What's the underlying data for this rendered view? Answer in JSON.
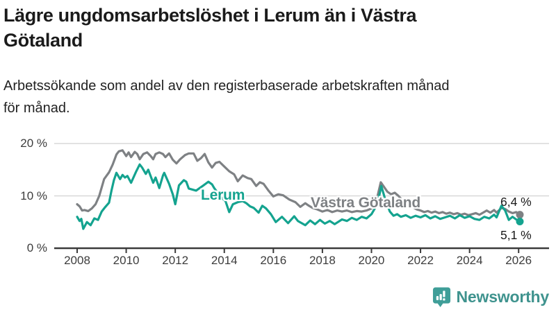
{
  "header": {
    "title": "Lägre ungdomsarbetslöshet i Lerum än i Västra\nGötaland",
    "subtitle": "Arbetssökande som andel av den registerbaserade arbetskraften månad\nför månad."
  },
  "chart_data": {
    "type": "line",
    "title": "Lägre ungdomsarbetslöshet i Lerum än i Västra Götaland",
    "unit": "%",
    "x_axis": {
      "tick_years": [
        2008,
        2010,
        2012,
        2014,
        2016,
        2018,
        2020,
        2022,
        2024,
        2026
      ],
      "tick_labels": [
        "2008",
        "2010",
        "2012",
        "2014",
        "2016",
        "2018",
        "2020",
        "2022",
        "2024",
        "2026"
      ],
      "range_years": [
        2007.1,
        2027.2
      ]
    },
    "y_axis": {
      "tick_values": [
        0,
        10,
        20
      ],
      "tick_labels": [
        "0 %",
        "10 %",
        "20 %"
      ],
      "range": [
        0,
        21
      ],
      "gridlines": [
        10,
        20
      ],
      "grid_color": "#d8d8d8",
      "axis_color": "#3a3a3a"
    },
    "legend_position": "inline-labels",
    "series": [
      {
        "name": "Västra Götaland",
        "color": "#7e8184",
        "end_label": "6,4 %",
        "end_value": 6.4,
        "label": {
          "text": "Västra Götaland",
          "x": 447,
          "y": 281
        },
        "points": [
          [
            2008.0,
            8.4
          ],
          [
            2008.1,
            8.0
          ],
          [
            2008.2,
            7.2
          ],
          [
            2008.3,
            7.3
          ],
          [
            2008.45,
            7.1
          ],
          [
            2008.6,
            7.6
          ],
          [
            2008.75,
            8.4
          ],
          [
            2008.9,
            10.0
          ],
          [
            2009.1,
            13.2
          ],
          [
            2009.3,
            14.5
          ],
          [
            2009.45,
            16.0
          ],
          [
            2009.6,
            17.9
          ],
          [
            2009.7,
            18.5
          ],
          [
            2009.85,
            18.7
          ],
          [
            2010.0,
            17.6
          ],
          [
            2010.1,
            18.3
          ],
          [
            2010.2,
            17.4
          ],
          [
            2010.35,
            18.4
          ],
          [
            2010.45,
            18.0
          ],
          [
            2010.55,
            17.0
          ],
          [
            2010.7,
            18.0
          ],
          [
            2010.85,
            18.3
          ],
          [
            2011.0,
            17.6
          ],
          [
            2011.1,
            17.0
          ],
          [
            2011.2,
            18.0
          ],
          [
            2011.35,
            18.3
          ],
          [
            2011.5,
            18.0
          ],
          [
            2011.6,
            17.4
          ],
          [
            2011.75,
            18.1
          ],
          [
            2011.9,
            16.9
          ],
          [
            2012.05,
            16.2
          ],
          [
            2012.2,
            17.0
          ],
          [
            2012.4,
            17.8
          ],
          [
            2012.55,
            18.1
          ],
          [
            2012.75,
            18.1
          ],
          [
            2012.9,
            16.7
          ],
          [
            2013.05,
            17.2
          ],
          [
            2013.2,
            18.0
          ],
          [
            2013.35,
            16.4
          ],
          [
            2013.5,
            15.4
          ],
          [
            2013.65,
            16.3
          ],
          [
            2013.8,
            16.5
          ],
          [
            2014.0,
            15.6
          ],
          [
            2014.2,
            14.7
          ],
          [
            2014.4,
            14.1
          ],
          [
            2014.55,
            12.8
          ],
          [
            2014.75,
            13.9
          ],
          [
            2014.95,
            13.4
          ],
          [
            2015.1,
            13.2
          ],
          [
            2015.3,
            11.9
          ],
          [
            2015.45,
            12.6
          ],
          [
            2015.6,
            12.3
          ],
          [
            2015.8,
            11.0
          ],
          [
            2016.0,
            9.9
          ],
          [
            2016.2,
            10.3
          ],
          [
            2016.4,
            10.1
          ],
          [
            2016.65,
            9.3
          ],
          [
            2016.9,
            8.8
          ],
          [
            2017.1,
            7.9
          ],
          [
            2017.3,
            8.6
          ],
          [
            2017.45,
            8.1
          ],
          [
            2017.6,
            7.7
          ],
          [
            2017.8,
            7.4
          ],
          [
            2018.0,
            7.0
          ],
          [
            2018.2,
            7.3
          ],
          [
            2018.4,
            6.9
          ],
          [
            2018.6,
            7.2
          ],
          [
            2018.8,
            7.0
          ],
          [
            2019.0,
            7.2
          ],
          [
            2019.2,
            6.9
          ],
          [
            2019.4,
            7.1
          ],
          [
            2019.6,
            7.0
          ],
          [
            2019.8,
            7.2
          ],
          [
            2020.0,
            7.6
          ],
          [
            2020.2,
            9.0
          ],
          [
            2020.38,
            12.6
          ],
          [
            2020.5,
            11.8
          ],
          [
            2020.65,
            10.8
          ],
          [
            2020.8,
            10.3
          ],
          [
            2020.95,
            10.6
          ],
          [
            2021.1,
            10.0
          ],
          [
            2021.25,
            9.2
          ],
          [
            2021.4,
            8.5
          ],
          [
            2021.55,
            8.2
          ],
          [
            2021.7,
            7.8
          ],
          [
            2021.85,
            7.4
          ],
          [
            2022.0,
            7.2
          ],
          [
            2022.15,
            6.9
          ],
          [
            2022.3,
            7.1
          ],
          [
            2022.45,
            6.8
          ],
          [
            2022.6,
            7.0
          ],
          [
            2022.75,
            6.7
          ],
          [
            2022.9,
            6.9
          ],
          [
            2023.05,
            6.6
          ],
          [
            2023.2,
            6.8
          ],
          [
            2023.35,
            6.5
          ],
          [
            2023.5,
            6.7
          ],
          [
            2023.65,
            6.4
          ],
          [
            2023.8,
            6.6
          ],
          [
            2023.95,
            6.3
          ],
          [
            2024.1,
            6.5
          ],
          [
            2024.25,
            6.7
          ],
          [
            2024.4,
            6.4
          ],
          [
            2024.55,
            6.8
          ],
          [
            2024.7,
            7.2
          ],
          [
            2024.85,
            6.8
          ],
          [
            2025.0,
            7.3
          ],
          [
            2025.1,
            6.8
          ],
          [
            2025.3,
            7.7
          ],
          [
            2025.45,
            7.5
          ],
          [
            2025.6,
            7.0
          ],
          [
            2025.75,
            6.7
          ],
          [
            2025.9,
            6.9
          ],
          [
            2026.05,
            6.4
          ]
        ]
      },
      {
        "name": "Lerum",
        "color": "#14a38f",
        "end_label": "5,1 %",
        "end_value": 5.1,
        "label": {
          "text": "Lerum",
          "x": 289,
          "y": 270
        },
        "points": [
          [
            2008.0,
            6.0
          ],
          [
            2008.1,
            5.2
          ],
          [
            2008.17,
            5.6
          ],
          [
            2008.25,
            3.7
          ],
          [
            2008.4,
            5.0
          ],
          [
            2008.55,
            4.4
          ],
          [
            2008.7,
            5.7
          ],
          [
            2008.85,
            5.4
          ],
          [
            2009.0,
            7.0
          ],
          [
            2009.15,
            7.9
          ],
          [
            2009.3,
            8.7
          ],
          [
            2009.4,
            11.0
          ],
          [
            2009.5,
            13.0
          ],
          [
            2009.6,
            14.4
          ],
          [
            2009.75,
            13.2
          ],
          [
            2009.85,
            14.0
          ],
          [
            2009.95,
            13.5
          ],
          [
            2010.05,
            13.8
          ],
          [
            2010.2,
            12.5
          ],
          [
            2010.4,
            14.6
          ],
          [
            2010.55,
            16.0
          ],
          [
            2010.65,
            15.4
          ],
          [
            2010.8,
            14.2
          ],
          [
            2010.9,
            15.0
          ],
          [
            2011.1,
            12.5
          ],
          [
            2011.2,
            13.5
          ],
          [
            2011.35,
            11.5
          ],
          [
            2011.5,
            13.9
          ],
          [
            2011.55,
            14.4
          ],
          [
            2011.75,
            12.3
          ],
          [
            2011.9,
            10.3
          ],
          [
            2012.0,
            8.4
          ],
          [
            2012.15,
            12.0
          ],
          [
            2012.35,
            13.0
          ],
          [
            2012.45,
            12.7
          ],
          [
            2012.55,
            11.4
          ],
          [
            2012.7,
            11.2
          ],
          [
            2012.85,
            11.0
          ],
          [
            2013.0,
            11.5
          ],
          [
            2013.15,
            12.0
          ],
          [
            2013.35,
            12.7
          ],
          [
            2013.5,
            12.2
          ],
          [
            2013.6,
            11.4
          ],
          [
            2013.75,
            10.5
          ],
          [
            2013.9,
            9.6
          ],
          [
            2014.05,
            9.0
          ],
          [
            2014.2,
            6.9
          ],
          [
            2014.35,
            8.4
          ],
          [
            2014.55,
            8.8
          ],
          [
            2014.75,
            9.0
          ],
          [
            2014.9,
            8.6
          ],
          [
            2015.05,
            8.0
          ],
          [
            2015.2,
            7.7
          ],
          [
            2015.4,
            6.8
          ],
          [
            2015.55,
            8.1
          ],
          [
            2015.7,
            7.6
          ],
          [
            2015.9,
            6.5
          ],
          [
            2016.1,
            5.0
          ],
          [
            2016.35,
            6.0
          ],
          [
            2016.6,
            4.8
          ],
          [
            2016.85,
            6.1
          ],
          [
            2017.0,
            5.2
          ],
          [
            2017.3,
            4.4
          ],
          [
            2017.5,
            5.3
          ],
          [
            2017.7,
            4.6
          ],
          [
            2017.9,
            5.4
          ],
          [
            2018.1,
            4.7
          ],
          [
            2018.3,
            5.2
          ],
          [
            2018.5,
            4.6
          ],
          [
            2018.8,
            5.5
          ],
          [
            2019.0,
            5.2
          ],
          [
            2019.2,
            5.8
          ],
          [
            2019.4,
            5.4
          ],
          [
            2019.6,
            6.0
          ],
          [
            2019.8,
            5.7
          ],
          [
            2020.0,
            6.5
          ],
          [
            2020.25,
            8.5
          ],
          [
            2020.4,
            11.9
          ],
          [
            2020.55,
            9.5
          ],
          [
            2020.75,
            7.0
          ],
          [
            2020.9,
            6.2
          ],
          [
            2021.05,
            6.5
          ],
          [
            2021.2,
            6.0
          ],
          [
            2021.4,
            6.3
          ],
          [
            2021.6,
            5.8
          ],
          [
            2021.8,
            6.2
          ],
          [
            2022.0,
            5.9
          ],
          [
            2022.2,
            6.3
          ],
          [
            2022.4,
            5.7
          ],
          [
            2022.6,
            6.1
          ],
          [
            2022.8,
            5.6
          ],
          [
            2023.0,
            5.9
          ],
          [
            2023.2,
            6.2
          ],
          [
            2023.4,
            5.7
          ],
          [
            2023.6,
            6.3
          ],
          [
            2023.8,
            5.8
          ],
          [
            2024.0,
            6.1
          ],
          [
            2024.2,
            5.6
          ],
          [
            2024.4,
            5.4
          ],
          [
            2024.6,
            6.0
          ],
          [
            2024.8,
            5.7
          ],
          [
            2025.0,
            6.4
          ],
          [
            2025.1,
            5.9
          ],
          [
            2025.3,
            8.1
          ],
          [
            2025.45,
            7.2
          ],
          [
            2025.6,
            5.4
          ],
          [
            2025.75,
            6.0
          ],
          [
            2025.9,
            5.5
          ],
          [
            2026.05,
            5.1
          ]
        ]
      }
    ]
  },
  "branding": {
    "name": "Newsworthy",
    "color": "#3f938e",
    "icon": "bar-chart-speech-bubble-icon"
  }
}
